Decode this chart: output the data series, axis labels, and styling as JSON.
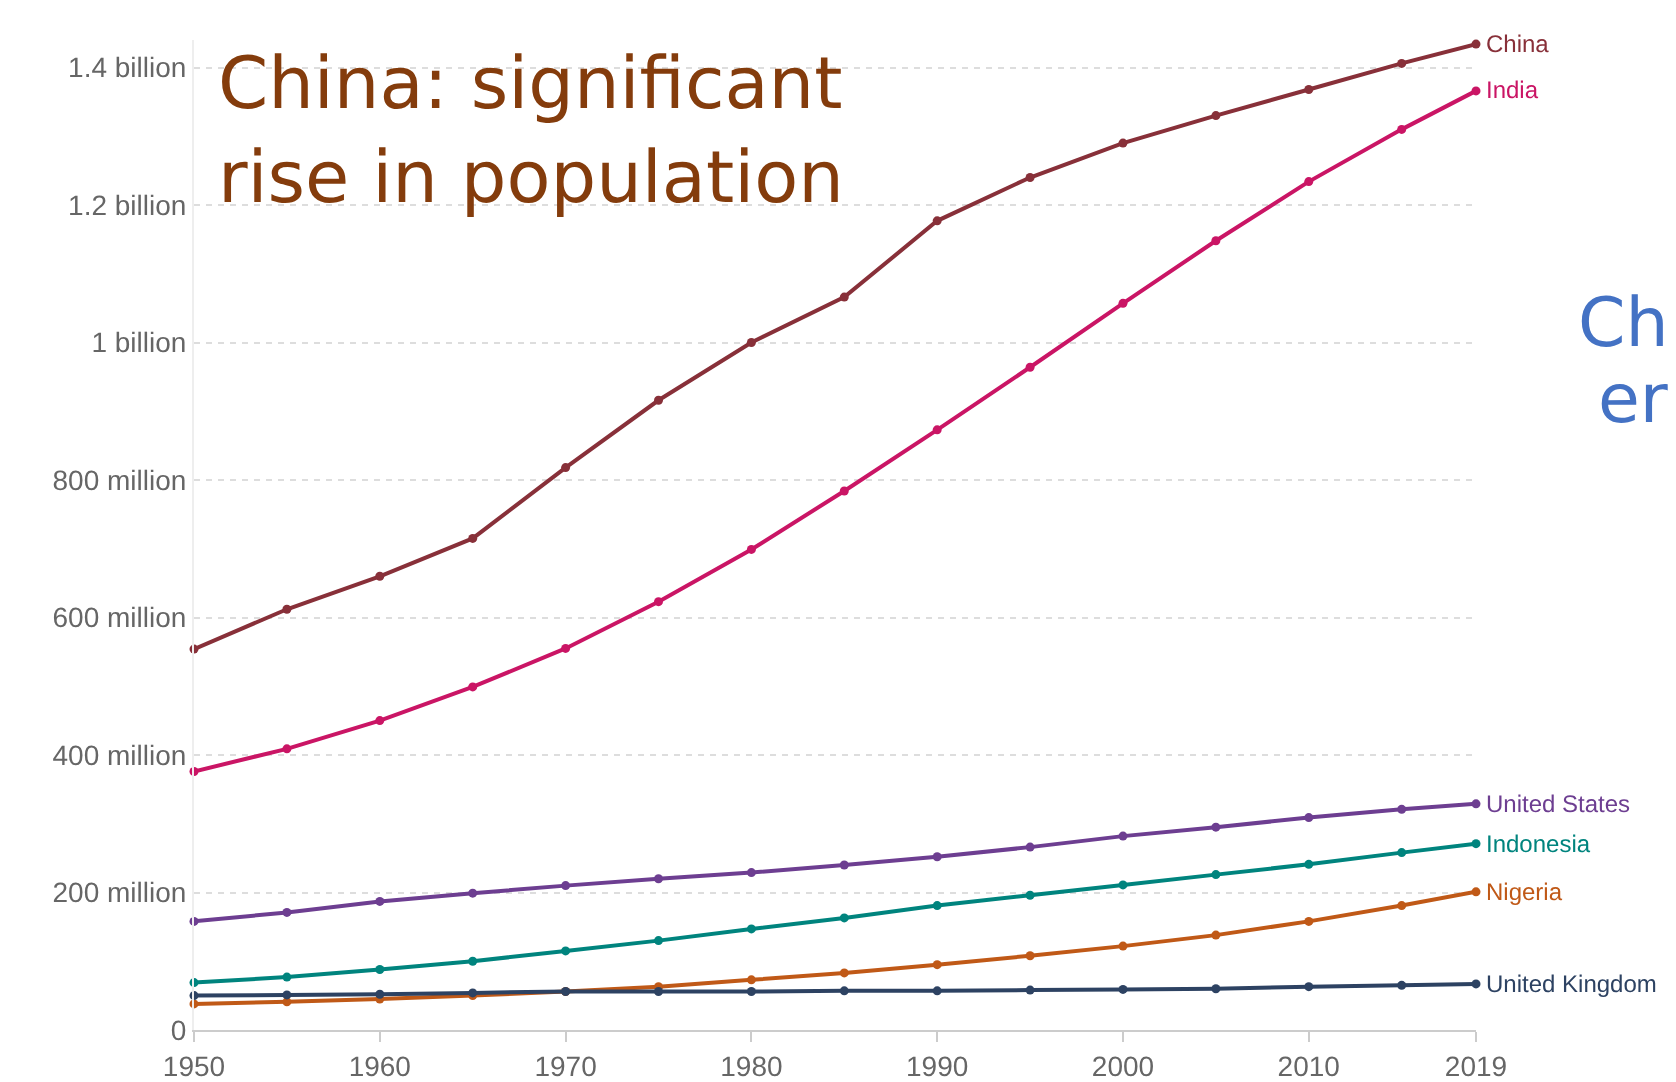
{
  "chart_data": {
    "type": "line",
    "title": "China: significant\nrise in population",
    "annotations": [
      "Ch",
      "er"
    ],
    "x": [
      1950,
      1955,
      1960,
      1965,
      1970,
      1975,
      1980,
      1985,
      1990,
      1995,
      2000,
      2005,
      2010,
      2015,
      2019
    ],
    "series": [
      {
        "name": "China",
        "color": "#883039",
        "values": [
          554000000,
          612000000,
          660000000,
          715000000,
          818000000,
          916000000,
          1000000000,
          1066000000,
          1177000000,
          1240000000,
          1290000000,
          1330000000,
          1368000000,
          1406000000,
          1434000000
        ]
      },
      {
        "name": "India",
        "color": "#ca1565",
        "values": [
          376000000,
          409000000,
          450000000,
          499000000,
          555000000,
          623000000,
          699000000,
          784000000,
          873000000,
          964000000,
          1057000000,
          1148000000,
          1234000000,
          1310000000,
          1366000000
        ]
      },
      {
        "name": "United States",
        "color": "#6d3e91",
        "values": [
          158000000,
          171000000,
          187000000,
          199000000,
          210000000,
          220000000,
          229000000,
          240000000,
          252000000,
          266000000,
          282000000,
          295000000,
          309000000,
          321000000,
          329000000
        ]
      },
      {
        "name": "Indonesia",
        "color": "#00847e",
        "values": [
          69000000,
          77000000,
          88000000,
          100000000,
          115000000,
          130000000,
          147000000,
          163000000,
          181000000,
          196000000,
          211000000,
          226000000,
          241000000,
          258000000,
          271000000
        ]
      },
      {
        "name": "Nigeria",
        "color": "#c05917",
        "values": [
          38000000,
          41000000,
          45000000,
          50000000,
          56000000,
          63000000,
          73000000,
          83000000,
          95000000,
          108000000,
          122000000,
          138000000,
          158000000,
          181000000,
          201000000
        ]
      },
      {
        "name": "United Kingdom",
        "color": "#2d4262",
        "values": [
          50000000,
          51000000,
          52000000,
          54000000,
          56000000,
          56000000,
          56000000,
          57000000,
          57000000,
          58000000,
          59000000,
          60000000,
          63000000,
          65000000,
          67000000
        ]
      }
    ],
    "xlim": [
      1950,
      2019
    ],
    "xticks": [
      1950,
      1960,
      1970,
      1980,
      1990,
      2000,
      2010,
      2019
    ],
    "ylim": [
      0,
      1440000000
    ],
    "yticks": [
      0,
      {
        "value": 200000000,
        "label": "200 million"
      },
      {
        "value": 400000000,
        "label": "400 million"
      },
      {
        "value": 600000000,
        "label": "600 million"
      },
      {
        "value": 800000000,
        "label": "800 million"
      },
      {
        "value": 1000000000,
        "label": "1 billion"
      },
      {
        "value": 1200000000,
        "label": "1.2 billion"
      },
      {
        "value": 1400000000,
        "label": "1.4 billion"
      }
    ],
    "grid": "y",
    "legend": false,
    "marker": "circle",
    "line_style": "solid"
  }
}
